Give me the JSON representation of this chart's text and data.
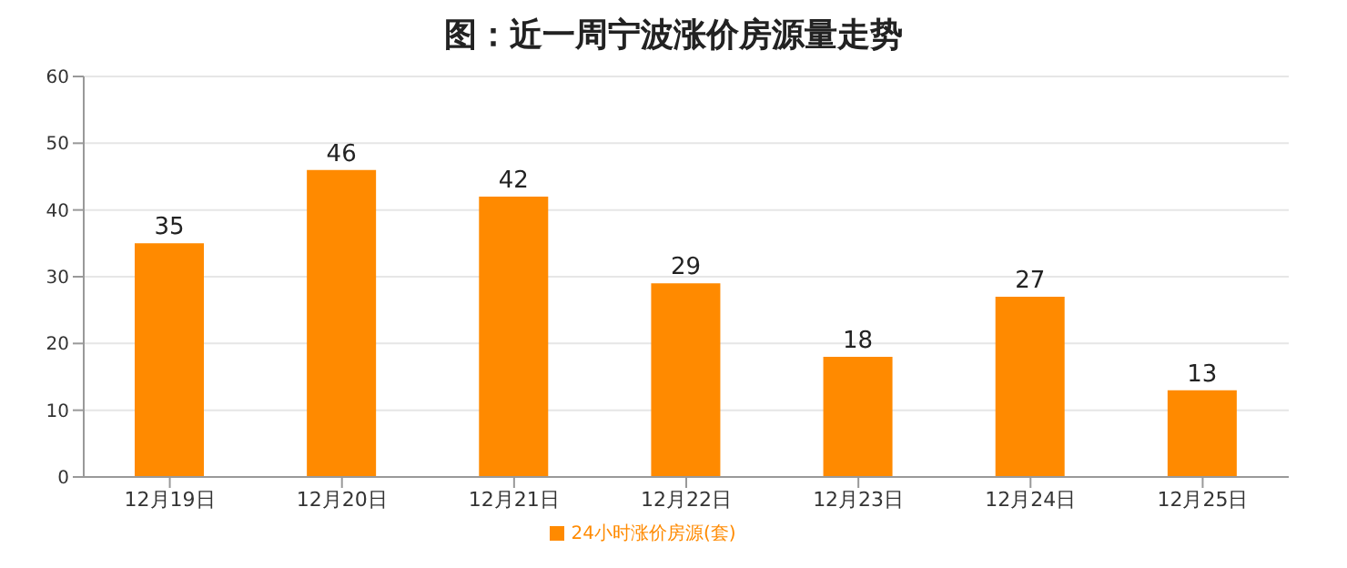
{
  "chart_data": {
    "type": "bar",
    "title": "图：近一周宁波涨价房源量走势",
    "categories": [
      "12月19日",
      "12月20日",
      "12月21日",
      "12月22日",
      "12月23日",
      "12月24日",
      "12月25日"
    ],
    "series": [
      {
        "name": "24小时涨价房源(套)",
        "color": "#ff8a00",
        "values": [
          35,
          46,
          42,
          29,
          18,
          27,
          13
        ]
      }
    ],
    "ylim": [
      0,
      60
    ],
    "yticks": [
      0,
      10,
      20,
      30,
      40,
      50,
      60
    ],
    "grid": "y",
    "legend": "bottom",
    "data_labels": true
  }
}
